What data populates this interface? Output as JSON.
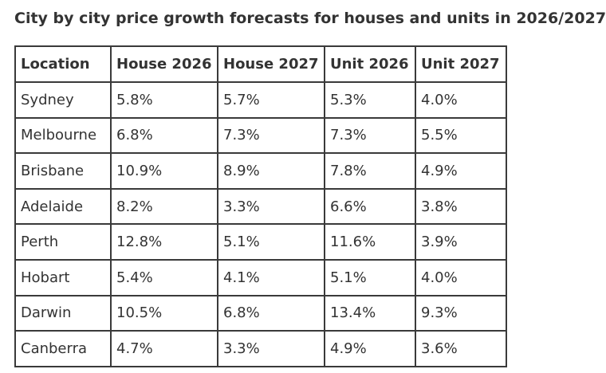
{
  "title": "City by city price growth forecasts for houses and units in 2026/2027",
  "table": {
    "headers": [
      "Location",
      "House 2026",
      "House 2027",
      "Unit 2026",
      "Unit 2027"
    ],
    "rows": [
      [
        "Sydney",
        "5.8%",
        "5.7%",
        "5.3%",
        "4.0%"
      ],
      [
        "Melbourne",
        "6.8%",
        "7.3%",
        "7.3%",
        "5.5%"
      ],
      [
        "Brisbane",
        "10.9%",
        "8.9%",
        "7.8%",
        "4.9%"
      ],
      [
        "Adelaide",
        "8.2%",
        "3.3%",
        "6.6%",
        "3.8%"
      ],
      [
        "Perth",
        "12.8%",
        "5.1%",
        "11.6%",
        "3.9%"
      ],
      [
        "Hobart",
        "5.4%",
        "4.1%",
        "5.1%",
        "4.0%"
      ],
      [
        "Darwin",
        "10.5%",
        "6.8%",
        "13.4%",
        "9.3%"
      ],
      [
        "Canberra",
        "4.7%",
        "3.3%",
        "4.9%",
        "3.6%"
      ]
    ]
  }
}
